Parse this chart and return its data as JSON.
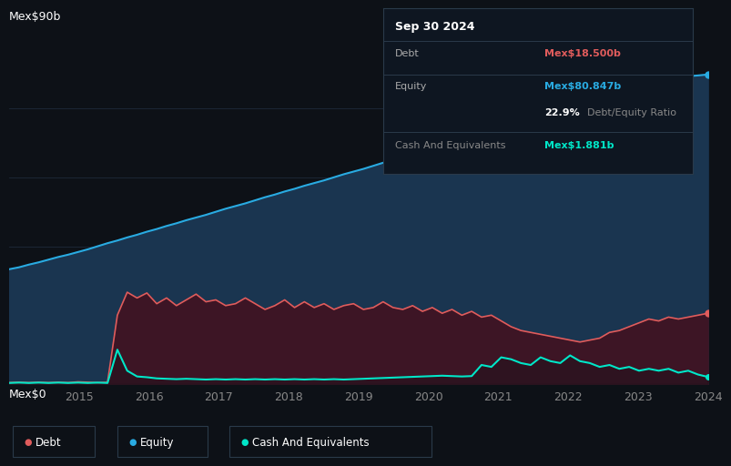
{
  "bg_color": "#0d1117",
  "plot_bg_color": "#0d1117",
  "y_top_label": "Mex$90b",
  "y_bottom_label": "Mex$0",
  "x_ticks": [
    "2015",
    "2016",
    "2017",
    "2018",
    "2019",
    "2020",
    "2021",
    "2022",
    "2023",
    "2024"
  ],
  "equity_color": "#29abe2",
  "debt_color": "#e05c5c",
  "cash_color": "#00e6c8",
  "equity_fill": "#1a3550",
  "debt_fill": "#3d1525",
  "tooltip": {
    "date": "Sep 30 2024",
    "debt_label": "Debt",
    "debt_value": "Mex$18.500b",
    "debt_color": "#e05c5c",
    "equity_label": "Equity",
    "equity_value": "Mex$80.847b",
    "equity_color": "#29abe2",
    "ratio_bold": "22.9%",
    "ratio_text": "Debt/Equity Ratio",
    "cash_label": "Cash And Equivalents",
    "cash_value": "Mex$1.881b",
    "cash_color": "#00e6c8",
    "bg": "#0e1621",
    "border": "#2a3a4a"
  },
  "legend": [
    {
      "label": "Debt",
      "color": "#e05c5c"
    },
    {
      "label": "Equity",
      "color": "#29abe2"
    },
    {
      "label": "Cash And Equivalents",
      "color": "#00e6c8"
    }
  ],
  "equity_data": [
    30.0,
    30.5,
    31.2,
    31.8,
    32.5,
    33.2,
    33.8,
    34.5,
    35.2,
    36.0,
    36.8,
    37.5,
    38.3,
    39.0,
    39.8,
    40.5,
    41.3,
    42.0,
    42.8,
    43.5,
    44.2,
    45.0,
    45.8,
    46.5,
    47.2,
    48.0,
    48.8,
    49.5,
    50.3,
    51.0,
    51.8,
    52.5,
    53.2,
    54.0,
    54.8,
    55.5,
    56.2,
    57.0,
    57.8,
    58.5,
    59.2,
    60.0,
    60.8,
    61.5,
    62.2,
    63.0,
    63.8,
    64.5,
    65.2,
    66.0,
    66.8,
    67.5,
    68.2,
    69.0,
    69.8,
    70.5,
    71.2,
    72.0,
    72.8,
    73.5,
    74.2,
    75.0,
    75.8,
    76.5,
    77.2,
    78.0,
    78.8,
    79.5,
    80.0,
    80.4,
    80.6,
    80.847
  ],
  "debt_data": [
    0.4,
    0.5,
    0.4,
    0.5,
    0.4,
    0.5,
    0.4,
    0.6,
    0.5,
    0.4,
    0.5,
    18.0,
    24.0,
    22.5,
    23.8,
    21.0,
    22.5,
    20.5,
    22.0,
    23.5,
    21.5,
    22.0,
    20.5,
    21.0,
    22.5,
    21.0,
    19.5,
    20.5,
    22.0,
    20.0,
    21.5,
    20.0,
    21.0,
    19.5,
    20.5,
    21.0,
    19.5,
    20.0,
    21.5,
    20.0,
    19.5,
    20.5,
    19.0,
    20.0,
    18.5,
    19.5,
    18.0,
    19.0,
    17.5,
    18.0,
    16.5,
    15.0,
    14.0,
    13.5,
    13.0,
    12.5,
    12.0,
    11.5,
    11.0,
    11.5,
    12.0,
    13.5,
    14.0,
    15.0,
    16.0,
    17.0,
    16.5,
    17.5,
    17.0,
    17.5,
    18.0,
    18.5
  ],
  "cash_data": [
    0.3,
    0.4,
    0.3,
    0.4,
    0.3,
    0.4,
    0.3,
    0.4,
    0.3,
    0.4,
    0.3,
    9.0,
    3.5,
    2.0,
    1.8,
    1.5,
    1.4,
    1.3,
    1.4,
    1.3,
    1.2,
    1.3,
    1.2,
    1.3,
    1.2,
    1.3,
    1.2,
    1.3,
    1.2,
    1.3,
    1.2,
    1.3,
    1.2,
    1.3,
    1.2,
    1.3,
    1.4,
    1.5,
    1.6,
    1.7,
    1.8,
    1.9,
    2.0,
    2.1,
    2.2,
    2.1,
    2.0,
    2.1,
    5.0,
    4.5,
    7.0,
    6.5,
    5.5,
    5.0,
    7.0,
    6.0,
    5.5,
    7.5,
    6.0,
    5.5,
    4.5,
    5.0,
    4.0,
    4.5,
    3.5,
    4.0,
    3.5,
    4.0,
    3.0,
    3.5,
    2.5,
    1.881
  ]
}
